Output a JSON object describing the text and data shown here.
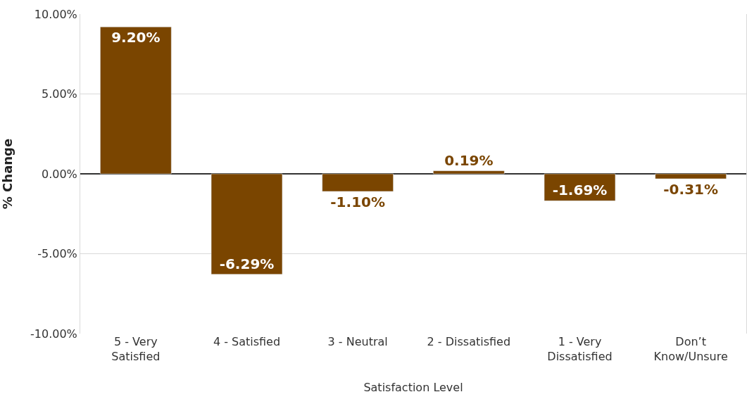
{
  "chart_data": {
    "type": "bar",
    "xlabel": "Satisfaction Level",
    "ylabel": "% Change",
    "categories": [
      "5 - Very Satisfied",
      "4 - Satisfied",
      "3 - Neutral",
      "2 - Dissatisfied",
      "1 - Very Dissatisfied",
      "Don’t Know/Unsure"
    ],
    "values": [
      9.2,
      -6.29,
      -1.1,
      0.19,
      -1.69,
      -0.31
    ],
    "value_labels": [
      "9.20%",
      "-6.29%",
      "-1.10%",
      "0.19%",
      "-1.69%",
      "-0.31%"
    ],
    "color": "#7a4500",
    "ylim": [
      -10,
      10
    ],
    "yticks": [
      {
        "value": -10,
        "label": "-10.00%"
      },
      {
        "value": -5,
        "label": "-5.00%"
      },
      {
        "value": 0,
        "label": "0.00%"
      },
      {
        "value": 5,
        "label": "5.00%"
      },
      {
        "value": 10,
        "label": "10.00%"
      }
    ],
    "grid": "y"
  }
}
